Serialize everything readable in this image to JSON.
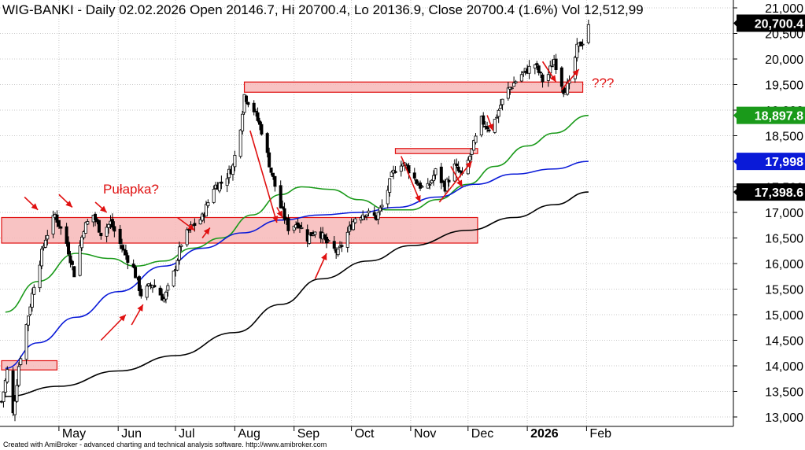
{
  "header": {
    "text": "WIG-BANKI - Daily 02.02.2026 Open 20146.7, Hi 20700.4, Lo 20136.9, Close 20700.4 (1.6%) Vol 12,512,99"
  },
  "footer": {
    "text": "Created with AmiBroker - advanced charting and technical analysis software. http://www.amibroker.com"
  },
  "colors": {
    "candle": "#000000",
    "sma_green": "#1a9a1a",
    "sma_blue": "#0a1ad8",
    "sma_black": "#000000",
    "zone_fill": "#f7b8b8",
    "zone_stroke": "#e01010",
    "arrow": "#e01010",
    "annotation": "#e01010"
  },
  "annotations": {
    "trap_label": "Pułapka?",
    "question_label": "???"
  },
  "chart_data": {
    "type": "candlestick",
    "title": "WIG-BANKI - Daily",
    "ylim": [
      12800,
      21100
    ],
    "y_ticks": [
      13000,
      13500,
      14000,
      14500,
      15000,
      15500,
      16000,
      16500,
      17000,
      17500,
      18000,
      18500,
      19000,
      19500,
      20000,
      20500,
      21000
    ],
    "y_tick_labels": [
      "13,000",
      "13,500",
      "14,000",
      "14,500",
      "15,000",
      "15,500",
      "16,000",
      "16,500",
      "17,000",
      "17,500",
      "18,000",
      "18,500",
      "19,000",
      "19,500",
      "20,000",
      "20,500",
      "21,000"
    ],
    "x_ticks": [
      "May",
      "Jun",
      "Jul",
      "Aug",
      "Sep",
      "Oct",
      "Nov",
      "Dec",
      "2026",
      "Feb"
    ],
    "x_tick_dates": [
      "2025-05-01",
      "2025-06-01",
      "2025-07-01",
      "2025-08-01",
      "2025-09-01",
      "2025-10-01",
      "2025-11-01",
      "2025-12-01",
      "2026-01-01",
      "2026-02-01"
    ],
    "x_range": [
      "2025-04-01",
      "2026-02-07"
    ],
    "grid": true,
    "last_close": 20700.4,
    "value_badges": [
      {
        "label": "20,700.4",
        "value": 20700.4,
        "color": "#000000"
      },
      {
        "label": "18,897.8",
        "value": 18897.8,
        "color": "#1a9a1a"
      },
      {
        "label": "17,998",
        "value": 17998,
        "color": "#0a1ad8"
      },
      {
        "label": "17,398.6",
        "value": 17398.6,
        "color": "#000000"
      }
    ],
    "anchors": [
      [
        "2025-04-01",
        13300
      ],
      [
        "2025-04-04",
        13900
      ],
      [
        "2025-04-07",
        13050
      ],
      [
        "2025-04-10",
        14000
      ],
      [
        "2025-04-14",
        14800
      ],
      [
        "2025-04-18",
        15600
      ],
      [
        "2025-04-24",
        16500
      ],
      [
        "2025-04-29",
        16950
      ],
      [
        "2025-05-05",
        16400
      ],
      [
        "2025-05-09",
        15800
      ],
      [
        "2025-05-14",
        16700
      ],
      [
        "2025-05-19",
        16950
      ],
      [
        "2025-05-23",
        16600
      ],
      [
        "2025-05-28",
        16800
      ],
      [
        "2025-06-03",
        16300
      ],
      [
        "2025-06-09",
        15900
      ],
      [
        "2025-06-13",
        15400
      ],
      [
        "2025-06-19",
        15600
      ],
      [
        "2025-06-25",
        15300
      ],
      [
        "2025-06-30",
        15800
      ],
      [
        "2025-07-04",
        16400
      ],
      [
        "2025-07-09",
        16700
      ],
      [
        "2025-07-15",
        16900
      ],
      [
        "2025-07-21",
        17500
      ],
      [
        "2025-07-26",
        17600
      ],
      [
        "2025-07-31",
        17900
      ],
      [
        "2025-08-04",
        18700
      ],
      [
        "2025-08-06",
        19300
      ],
      [
        "2025-08-11",
        19000
      ],
      [
        "2025-08-15",
        18600
      ],
      [
        "2025-08-20",
        17800
      ],
      [
        "2025-08-25",
        17100
      ],
      [
        "2025-08-29",
        16700
      ],
      [
        "2025-09-03",
        16800
      ],
      [
        "2025-09-08",
        16500
      ],
      [
        "2025-09-13",
        16700
      ],
      [
        "2025-09-18",
        16400
      ],
      [
        "2025-09-24",
        16200
      ],
      [
        "2025-09-29",
        16600
      ],
      [
        "2025-10-03",
        16900
      ],
      [
        "2025-10-08",
        17000
      ],
      [
        "2025-10-14",
        16900
      ],
      [
        "2025-10-18",
        17200
      ],
      [
        "2025-10-22",
        17700
      ],
      [
        "2025-10-26",
        18000
      ],
      [
        "2025-10-30",
        17900
      ],
      [
        "2025-11-04",
        17600
      ],
      [
        "2025-11-09",
        17400
      ],
      [
        "2025-11-14",
        17800
      ],
      [
        "2025-11-19",
        17500
      ],
      [
        "2025-11-24",
        17900
      ],
      [
        "2025-11-28",
        17700
      ],
      [
        "2025-12-03",
        18200
      ],
      [
        "2025-12-08",
        18800
      ],
      [
        "2025-12-13",
        18600
      ],
      [
        "2025-12-18",
        19100
      ],
      [
        "2025-12-22",
        19400
      ],
      [
        "2025-12-29",
        19700
      ],
      [
        "2026-01-05",
        19900
      ],
      [
        "2026-01-10",
        19500
      ],
      [
        "2026-01-15",
        20000
      ],
      [
        "2026-01-20",
        19400
      ],
      [
        "2026-01-23",
        19500
      ],
      [
        "2026-01-27",
        20200
      ],
      [
        "2026-01-30",
        20350
      ],
      [
        "2026-02-02",
        20700
      ]
    ],
    "series": [
      {
        "name": "SMA green",
        "color": "#1a9a1a",
        "values": [
          [
            "2025-04-03",
            15050
          ],
          [
            "2025-04-20",
            15650
          ],
          [
            "2025-05-10",
            16200
          ],
          [
            "2025-05-28",
            16100
          ],
          [
            "2025-06-10",
            15950
          ],
          [
            "2025-06-25",
            16050
          ],
          [
            "2025-07-10",
            16300
          ],
          [
            "2025-07-25",
            16500
          ],
          [
            "2025-08-10",
            16950
          ],
          [
            "2025-08-25",
            17350
          ],
          [
            "2025-09-05",
            17500
          ],
          [
            "2025-09-20",
            17450
          ],
          [
            "2025-10-05",
            17250
          ],
          [
            "2025-10-20",
            17050
          ],
          [
            "2025-11-01",
            17050
          ],
          [
            "2025-11-15",
            17250
          ],
          [
            "2025-12-01",
            17550
          ],
          [
            "2025-12-15",
            17900
          ],
          [
            "2026-01-01",
            18300
          ],
          [
            "2026-01-15",
            18550
          ],
          [
            "2026-02-02",
            18897.8
          ]
        ]
      },
      {
        "name": "SMA blue",
        "color": "#0a1ad8",
        "values": [
          [
            "2025-04-03",
            13950
          ],
          [
            "2025-04-20",
            14450
          ],
          [
            "2025-05-10",
            14950
          ],
          [
            "2025-06-01",
            15450
          ],
          [
            "2025-06-25",
            15950
          ],
          [
            "2025-07-15",
            16300
          ],
          [
            "2025-08-05",
            16600
          ],
          [
            "2025-08-25",
            16850
          ],
          [
            "2025-09-15",
            16950
          ],
          [
            "2025-10-05",
            17000
          ],
          [
            "2025-10-25",
            17100
          ],
          [
            "2025-11-15",
            17300
          ],
          [
            "2025-12-05",
            17550
          ],
          [
            "2025-12-25",
            17750
          ],
          [
            "2026-01-15",
            17850
          ],
          [
            "2026-02-02",
            17998
          ]
        ]
      },
      {
        "name": "SMA black",
        "color": "#000000",
        "values": [
          [
            "2025-04-03",
            13400
          ],
          [
            "2025-05-01",
            13600
          ],
          [
            "2025-06-01",
            13900
          ],
          [
            "2025-07-01",
            14200
          ],
          [
            "2025-08-01",
            14650
          ],
          [
            "2025-08-25",
            15200
          ],
          [
            "2025-09-15",
            15700
          ],
          [
            "2025-10-10",
            16050
          ],
          [
            "2025-11-01",
            16350
          ],
          [
            "2025-12-01",
            16650
          ],
          [
            "2025-12-25",
            16900
          ],
          [
            "2026-01-15",
            17150
          ],
          [
            "2026-02-02",
            17398.6
          ]
        ]
      }
    ],
    "zones": [
      {
        "x0": "2025-04-01",
        "x1": "2025-04-30",
        "y0": 13920,
        "y1": 14100
      },
      {
        "x0": "2025-04-01",
        "x1": "2025-12-06",
        "y0": 16400,
        "y1": 16900
      },
      {
        "x0": "2025-08-06",
        "x1": "2026-01-30",
        "y0": 19350,
        "y1": 19550
      },
      {
        "x0": "2025-10-24",
        "x1": "2025-12-06",
        "y0": 18150,
        "y1": 18250
      }
    ],
    "arrows": [
      {
        "from": [
          "2025-04-13",
          17300
        ],
        "to": [
          "2025-04-20",
          17050
        ]
      },
      {
        "from": [
          "2025-05-01",
          17350
        ],
        "to": [
          "2025-05-08",
          17100
        ]
      },
      {
        "from": [
          "2025-05-20",
          17200
        ],
        "to": [
          "2025-05-26",
          17000
        ]
      },
      {
        "from": [
          "2025-05-23",
          14500
        ],
        "to": [
          "2025-06-05",
          15000
        ]
      },
      {
        "from": [
          "2025-06-08",
          14800
        ],
        "to": [
          "2025-06-14",
          15200
        ]
      },
      {
        "from": [
          "2025-07-02",
          16900
        ],
        "to": [
          "2025-07-11",
          16650
        ]
      },
      {
        "from": [
          "2025-07-15",
          16500
        ],
        "to": [
          "2025-07-19",
          16700
        ]
      },
      {
        "from": [
          "2025-08-09",
          18600
        ],
        "to": [
          "2025-08-23",
          16800
        ]
      },
      {
        "from": [
          "2025-08-23",
          17100
        ],
        "to": [
          "2025-08-26",
          16900
        ]
      },
      {
        "from": [
          "2025-09-12",
          15700
        ],
        "to": [
          "2025-09-18",
          16200
        ]
      },
      {
        "from": [
          "2025-10-27",
          18100
        ],
        "to": [
          "2025-11-06",
          17200
        ]
      },
      {
        "from": [
          "2025-11-16",
          17200
        ],
        "to": [
          "2025-12-03",
          18000
        ]
      },
      {
        "from": [
          "2025-11-22",
          17900
        ],
        "to": [
          "2025-11-28",
          17500
        ]
      },
      {
        "from": [
          "2025-12-11",
          18900
        ],
        "to": [
          "2025-12-14",
          18600
        ]
      },
      {
        "from": [
          "2026-01-09",
          19950
        ],
        "to": [
          "2026-01-16",
          19550
        ]
      },
      {
        "from": [
          "2026-01-19",
          19400
        ],
        "to": [
          "2026-01-28",
          19800
        ]
      }
    ]
  }
}
